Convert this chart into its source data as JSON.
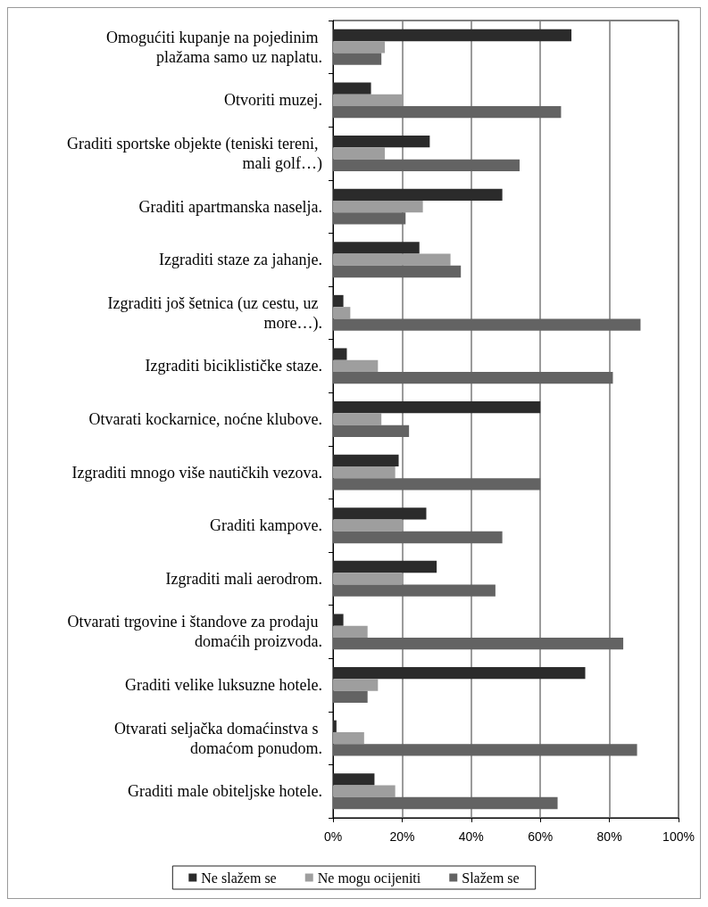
{
  "chart_data": {
    "type": "bar",
    "orientation": "horizontal",
    "categories": [
      "Omogućiti kupanje na pojedinim plažama samo uz naplatu.",
      "Otvoriti muzej.",
      "Graditi sportske objekte (teniski tereni, mali golf…)",
      "Graditi apartmanska naselja.",
      "Izgraditi staze za jahanje.",
      "Izgraditi još šetnica (uz cestu, uz more…).",
      "Izgraditi biciklističke staze.",
      "Otvarati kockarnice, noćne klubove.",
      "Izgraditi mnogo više nautičkih vezova.",
      "Graditi kampove.",
      "Izgraditi mali aerodrom.",
      "Otvarati trgovine i štandove za prodaju domaćih proizvoda.",
      "Graditi velike luksuzne hotele.",
      "Otvarati seljačka domaćinstva s domaćom ponudom.",
      "Graditi male obiteljske hotele."
    ],
    "series": [
      {
        "name": "Ne slažem se",
        "color": "#2b2b2b",
        "values": [
          69,
          11,
          28,
          49,
          25,
          3,
          4,
          60,
          19,
          27,
          30,
          3,
          73,
          1,
          12
        ]
      },
      {
        "name": "Ne mogu ocijeniti",
        "color": "#9e9e9e",
        "values": [
          15,
          20,
          15,
          26,
          34,
          5,
          13,
          14,
          18,
          20,
          20,
          10,
          13,
          9,
          18
        ]
      },
      {
        "name": "Slažem se",
        "color": "#636363",
        "values": [
          14,
          66,
          54,
          21,
          37,
          89,
          81,
          22,
          60,
          49,
          47,
          84,
          10,
          88,
          65
        ]
      }
    ],
    "xlim": [
      0,
      100
    ],
    "xticks": [
      {
        "value": 0,
        "label": "0%"
      },
      {
        "value": 20,
        "label": "20%"
      },
      {
        "value": 40,
        "label": "40%"
      },
      {
        "value": 60,
        "label": "60%"
      },
      {
        "value": 80,
        "label": "80%"
      },
      {
        "value": 100,
        "label": "100%"
      }
    ],
    "grid": "x",
    "legend": "bottom"
  }
}
